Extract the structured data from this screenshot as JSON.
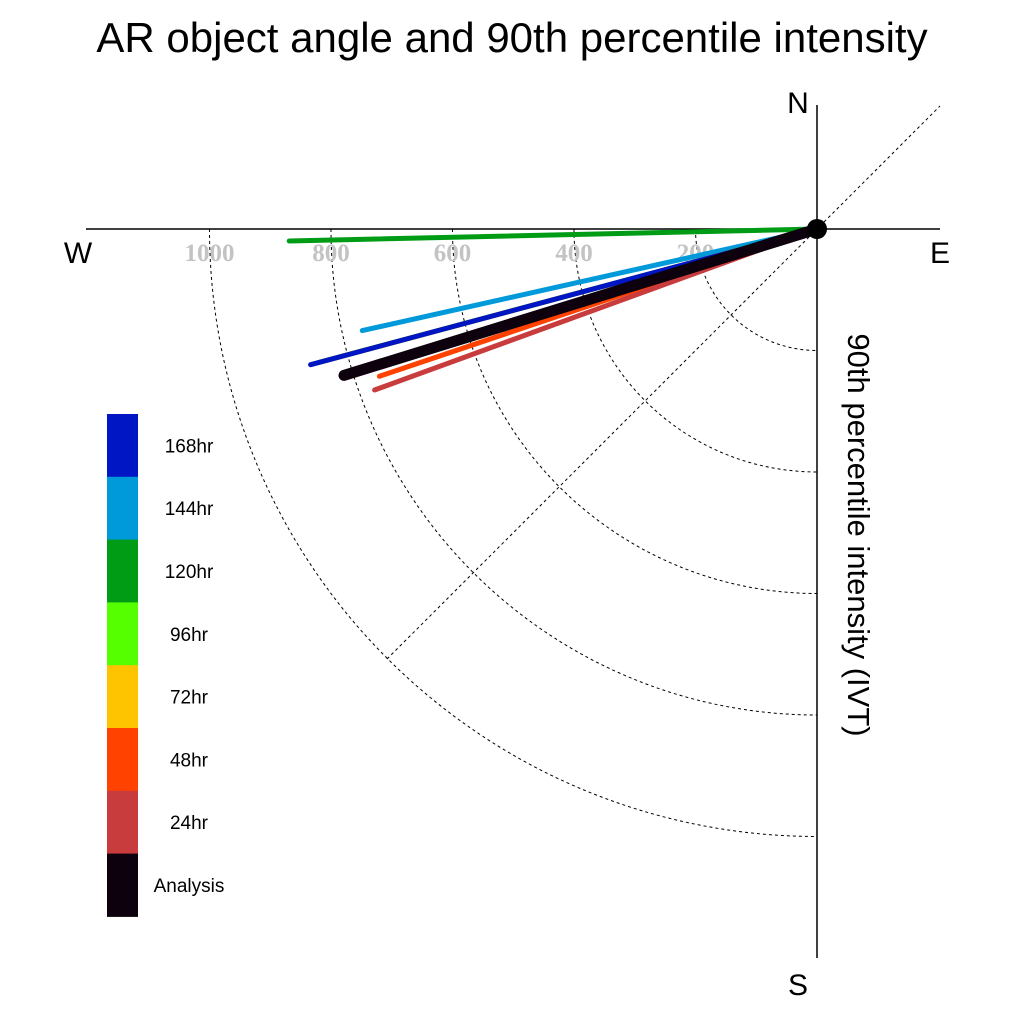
{
  "title": "AR object angle and 90th percentile intensity",
  "chart_data": {
    "type": "polar-quadrant",
    "title": "AR object angle and 90th percentile intensity",
    "ylabel": "90th percentile intensity (IVT)",
    "compass": {
      "north": "N",
      "south": "S",
      "east": "E",
      "west": "W"
    },
    "radial_ticks": [
      {
        "value": 200,
        "label": "200"
      },
      {
        "value": 400,
        "label": "400"
      },
      {
        "value": 600,
        "label": "600"
      },
      {
        "value": 800,
        "label": "800"
      },
      {
        "value": 1000,
        "label": "1000"
      }
    ],
    "rlim": [
      0,
      1200
    ],
    "series": [
      {
        "name": "168hr",
        "color": "#0015c3",
        "angle_deg": 255.0,
        "intensity": 863
      },
      {
        "name": "144hr",
        "color": "#009ada",
        "angle_deg": 257.4,
        "intensity": 767
      },
      {
        "name": "120hr",
        "color": "#009c15",
        "angle_deg": 268.7,
        "intensity": 869
      },
      {
        "name": "96hr",
        "color": "#56ff00",
        "angle_deg": 255.0,
        "intensity": 850
      },
      {
        "name": "72hr",
        "color": "#ffc400",
        "angle_deg": 255.0,
        "intensity": 840
      },
      {
        "name": "48hr",
        "color": "#ff4200",
        "angle_deg": 251.4,
        "intensity": 760
      },
      {
        "name": "24hr",
        "color": "#c93c3d",
        "angle_deg": 250.0,
        "intensity": 775
      },
      {
        "name": "Analysis",
        "color": "#0c010c",
        "angle_deg": 252.8,
        "intensity": 815
      }
    ],
    "legend": {
      "position": "left",
      "entries": [
        {
          "label": "168hr",
          "color": "#0015c3"
        },
        {
          "label": "144hr",
          "color": "#009ada"
        },
        {
          "label": "120hr",
          "color": "#009c15"
        },
        {
          "label": "96hr",
          "color": "#56ff00"
        },
        {
          "label": "72hr",
          "color": "#ffc400"
        },
        {
          "label": "48hr",
          "color": "#ff4200"
        },
        {
          "label": "24hr",
          "color": "#c93c3d"
        },
        {
          "label": "Analysis",
          "color": "#0c010c"
        }
      ]
    }
  }
}
